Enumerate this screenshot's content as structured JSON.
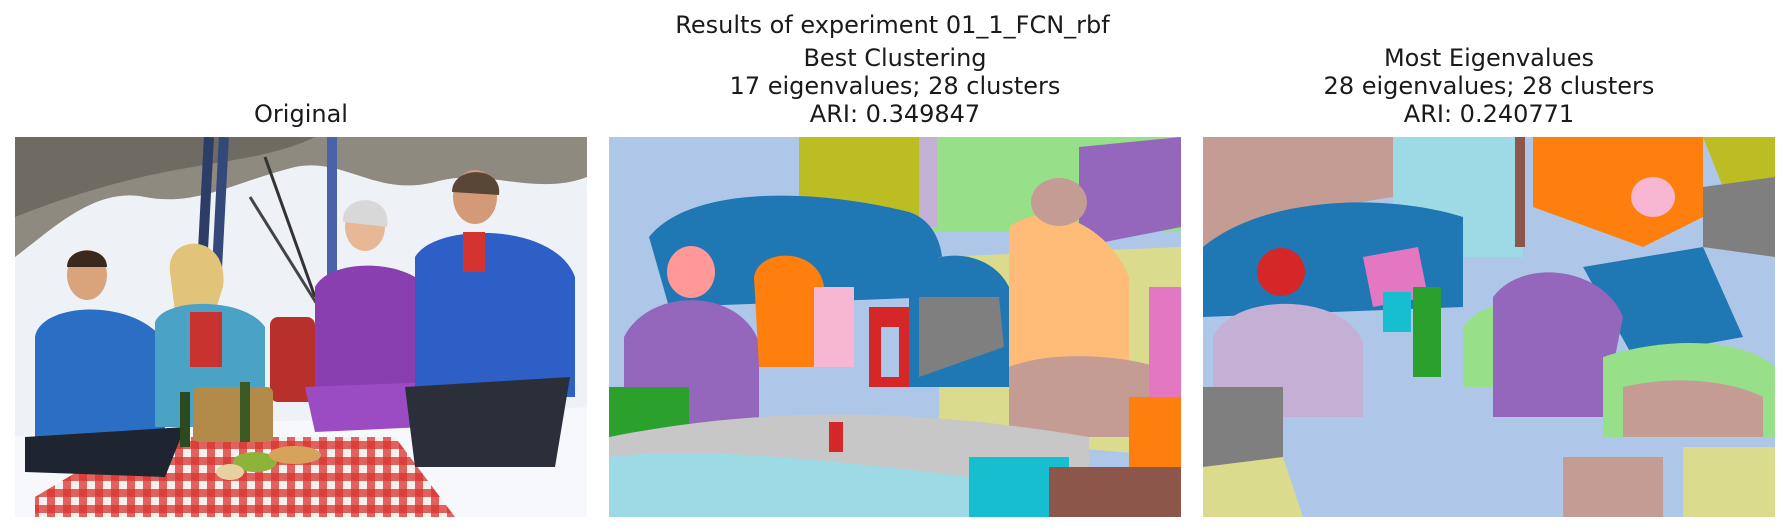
{
  "figure": {
    "suptitle": "Results of experiment 01_1_FCN_rbf"
  },
  "panels": [
    {
      "title_lines": [
        "Original"
      ],
      "kind": "photo"
    },
    {
      "title_lines": [
        "Best Clustering",
        "17 eigenvalues; 28 clusters",
        "ARI: 0.349847"
      ],
      "kind": "segmentation"
    },
    {
      "title_lines": [
        "Most Eigenvalues",
        "28 eigenvalues; 28 clusters",
        "ARI: 0.240771"
      ],
      "kind": "segmentation"
    }
  ],
  "colors": {
    "snow": "#eef2f7",
    "rock": "#8f8a80",
    "blue_jacket": "#2b6fc4",
    "purple_suit": "#8a3fb0",
    "red_check": "#d8322f",
    "tab_blue": "#1f77b4",
    "tab_purple": "#9467bd",
    "tab_orange": "#ff7f0e",
    "tab_green": "#2ca02c",
    "tab_lightgreen": "#98df8a",
    "tab_olive": "#bcbd22",
    "tab_khaki": "#dbdb8d",
    "tab_grey": "#7f7f7f",
    "tab_lightgrey": "#c7c7c7",
    "tab_red": "#d62728",
    "tab_pink": "#e377c2",
    "tab_lightpink": "#f7b6d2",
    "tab_salmon": "#ff9896",
    "tab_peach": "#ffbb78",
    "tab_cyan": "#17becf",
    "tab_lightcyan": "#9edae5",
    "tab_brown": "#8c564b",
    "tab_tan": "#c49c94",
    "tab_lavender": "#c5b0d5",
    "tab_skyblue": "#aec7e8"
  }
}
